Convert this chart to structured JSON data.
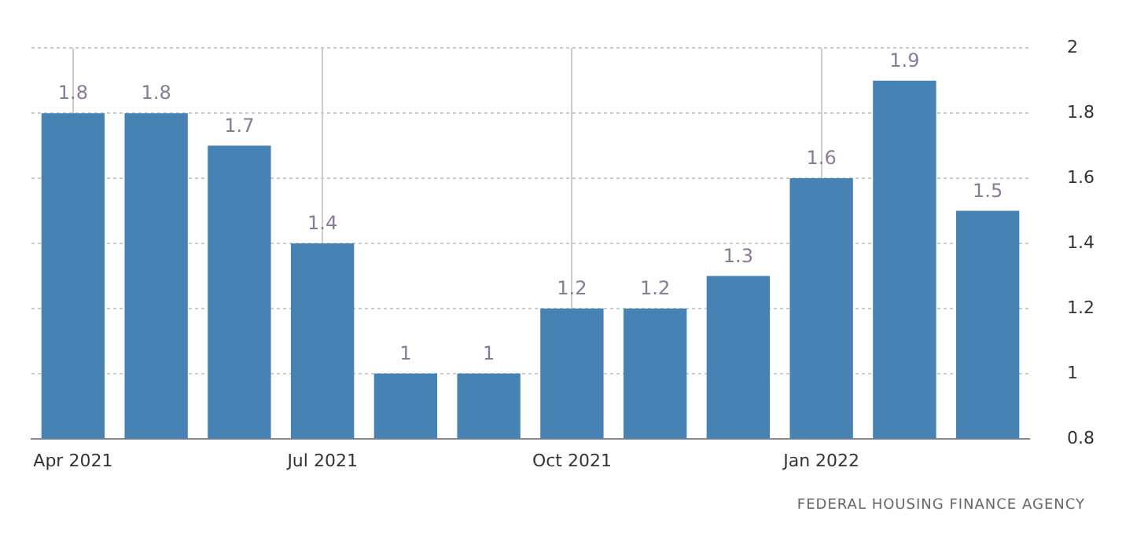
{
  "chart_data": {
    "type": "bar",
    "categories": [
      "Apr 2021",
      null,
      null,
      "Jul 2021",
      null,
      null,
      "Oct 2021",
      null,
      null,
      "Jan 2022",
      null,
      null
    ],
    "values": [
      1.8,
      1.8,
      1.7,
      1.4,
      1,
      1,
      1.2,
      1.2,
      1.3,
      1.6,
      1.9,
      1.5
    ],
    "color": "#4682b4",
    "ylim": [
      0.8,
      2
    ],
    "yticks": [
      0.8,
      1,
      1.2,
      1.4,
      1.6,
      1.8,
      2
    ],
    "grid": true,
    "legend": false,
    "data_labels": true,
    "annotations": [
      "FEDERAL HOUSING FINANCE AGENCY"
    ]
  }
}
